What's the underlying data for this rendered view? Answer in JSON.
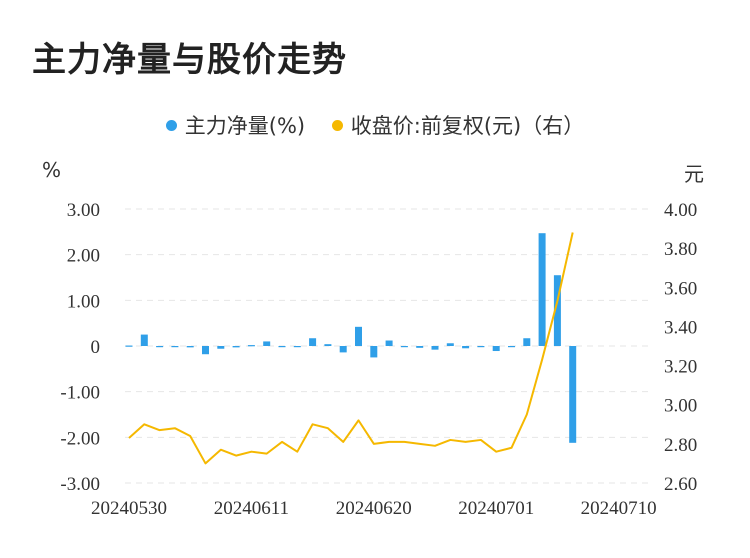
{
  "title": "主力净量与股价走势",
  "legend": [
    {
      "label": "主力净量(%)",
      "color": "#2f9fe8"
    },
    {
      "label": "收盘价:前复权(元)（右）",
      "color": "#f5b800"
    }
  ],
  "units": {
    "left": "%",
    "right": "元"
  },
  "chart_data": {
    "type": "bar+line",
    "title": "主力净量与股价走势",
    "x_tick_labels": [
      "20240530",
      "20240611",
      "20240620",
      "20240701",
      "20240710"
    ],
    "x_tick_indices": [
      0,
      8,
      16,
      24,
      32
    ],
    "yleft_ticks": [
      "3.00",
      "2.00",
      "1.00",
      "0",
      "-1.00",
      "-2.00",
      "-3.00"
    ],
    "yleft_lim": [
      -3,
      3
    ],
    "yright_ticks": [
      "4.00",
      "3.80",
      "3.60",
      "3.40",
      "3.20",
      "3.00",
      "2.80",
      "2.60"
    ],
    "yright_lim": [
      2.6,
      4.0
    ],
    "grid": true,
    "legend_position": "top",
    "series": [
      {
        "name": "主力净量(%)",
        "type": "bar",
        "axis": "left",
        "color": "#2f9fe8",
        "values": [
          0.01,
          0.25,
          -0.02,
          0.0,
          -0.03,
          -0.18,
          -0.06,
          -0.03,
          0.02,
          0.1,
          -0.01,
          0.0,
          0.17,
          0.04,
          -0.14,
          0.42,
          -0.25,
          0.12,
          -0.01,
          -0.04,
          -0.08,
          0.06,
          -0.05,
          0.0,
          -0.11,
          0.0,
          0.17,
          2.47,
          1.55,
          -2.12
        ]
      },
      {
        "name": "收盘价:前复权(元)（右）",
        "type": "line",
        "axis": "right",
        "color": "#f5b800",
        "values": [
          2.83,
          2.9,
          2.87,
          2.88,
          2.84,
          2.7,
          2.77,
          2.74,
          2.76,
          2.75,
          2.81,
          2.76,
          2.9,
          2.88,
          2.81,
          2.92,
          2.8,
          2.81,
          2.81,
          2.8,
          2.79,
          2.82,
          2.81,
          2.82,
          2.76,
          2.78,
          2.95,
          3.23,
          3.53,
          3.88
        ]
      }
    ]
  }
}
